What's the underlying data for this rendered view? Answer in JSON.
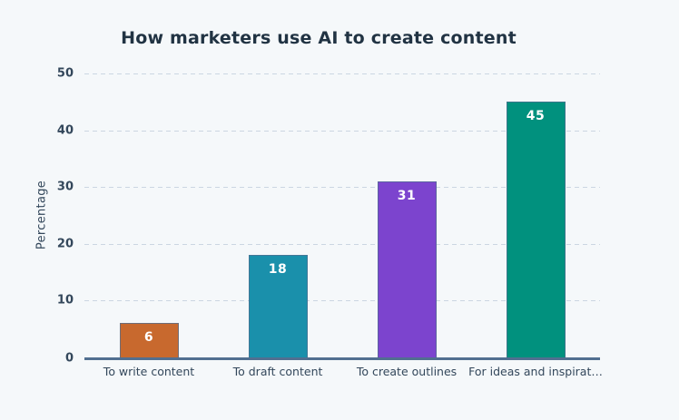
{
  "chart_data": {
    "type": "bar",
    "title": "How marketers use AI to create content",
    "xlabel": "",
    "ylabel": "Percentage",
    "categories": [
      "To write content",
      "To draft content",
      "To create outlines",
      "For ideas and inspirat…"
    ],
    "values": [
      6,
      18,
      31,
      45
    ],
    "value_labels": [
      "6",
      "18",
      "31",
      "45"
    ],
    "bar_colors": [
      "#c8692e",
      "#1a90ab",
      "#7c44ce",
      "#01917e"
    ],
    "ylim": [
      0,
      50
    ],
    "yticks": [
      0,
      10,
      20,
      30,
      40,
      50
    ],
    "grid": "horizontal-dashed",
    "legend": "none"
  },
  "style": {
    "background_color": "#f5f8fa",
    "title_color": "#213343",
    "axis_text_color": "#33475b",
    "gridline_color": "#cbd6e2",
    "baseline_color": "#516f90",
    "bar_value_text_color": "#ffffff"
  }
}
